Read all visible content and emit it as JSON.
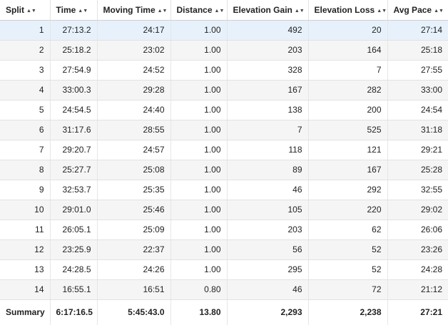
{
  "table": {
    "columns": [
      {
        "label": "Split"
      },
      {
        "label": "Time"
      },
      {
        "label": "Moving Time"
      },
      {
        "label": "Distance"
      },
      {
        "label": "Elevation Gain"
      },
      {
        "label": "Elevation Loss"
      },
      {
        "label": "Avg Pace"
      }
    ],
    "sort_icon": "sort-arrows-icon",
    "sort_glyph": "▲▼",
    "highlight_color": "#e6f1fb",
    "rows": [
      [
        "1",
        "27:13.2",
        "24:17",
        "1.00",
        "492",
        "20",
        "27:14"
      ],
      [
        "2",
        "25:18.2",
        "23:02",
        "1.00",
        "203",
        "164",
        "25:18"
      ],
      [
        "3",
        "27:54.9",
        "24:52",
        "1.00",
        "328",
        "7",
        "27:55"
      ],
      [
        "4",
        "33:00.3",
        "29:28",
        "1.00",
        "167",
        "282",
        "33:00"
      ],
      [
        "5",
        "24:54.5",
        "24:40",
        "1.00",
        "138",
        "200",
        "24:54"
      ],
      [
        "6",
        "31:17.6",
        "28:55",
        "1.00",
        "7",
        "525",
        "31:18"
      ],
      [
        "7",
        "29:20.7",
        "24:57",
        "1.00",
        "118",
        "121",
        "29:21"
      ],
      [
        "8",
        "25:27.7",
        "25:08",
        "1.00",
        "89",
        "167",
        "25:28"
      ],
      [
        "9",
        "32:53.7",
        "25:35",
        "1.00",
        "46",
        "292",
        "32:55"
      ],
      [
        "10",
        "29:01.0",
        "25:46",
        "1.00",
        "105",
        "220",
        "29:02"
      ],
      [
        "11",
        "26:05.1",
        "25:09",
        "1.00",
        "203",
        "62",
        "26:06"
      ],
      [
        "12",
        "23:25.9",
        "22:37",
        "1.00",
        "56",
        "52",
        "23:26"
      ],
      [
        "13",
        "24:28.5",
        "24:26",
        "1.00",
        "295",
        "52",
        "24:28"
      ],
      [
        "14",
        "16:55.1",
        "16:51",
        "0.80",
        "46",
        "72",
        "21:12"
      ]
    ],
    "summary": [
      "Summary",
      "6:17:16.5",
      "5:45:43.0",
      "13.80",
      "2,293",
      "2,238",
      "27:21"
    ]
  }
}
